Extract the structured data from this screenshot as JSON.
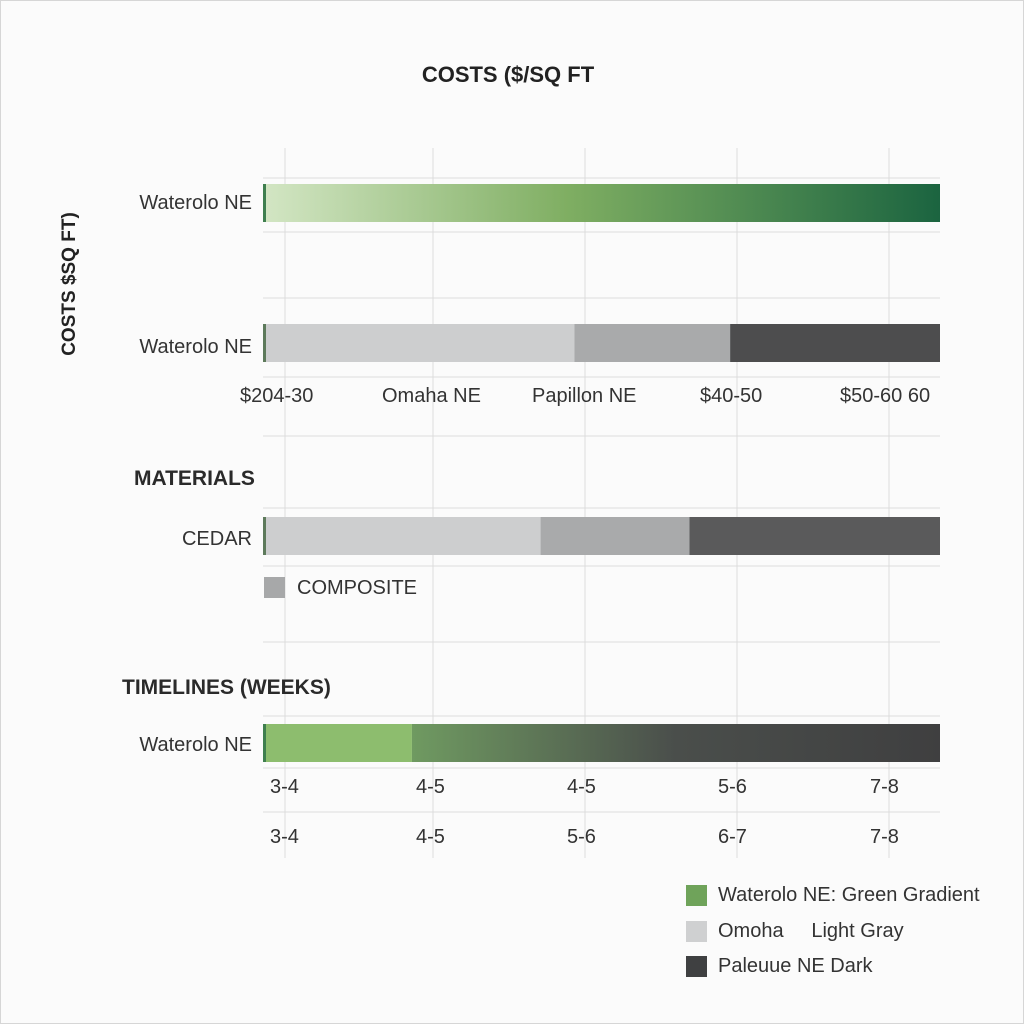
{
  "chart_data": {
    "type": "bar",
    "title": "COSTS ($/SQ FT",
    "ylabel": "COSTS $SQ FT)",
    "colors": {
      "green_start": "#d3e6c4",
      "green_mid": "#7fae62",
      "green_end": "#1b6440",
      "light_gray": "#cdcecf",
      "mid_gray": "#a9aaab",
      "dark_gray": "#4d4d4e",
      "grid": "#dcdcdc"
    },
    "costs": {
      "rows": [
        {
          "label": "Waterolo NE",
          "fill": "green-gradient",
          "segments": [
            1.0
          ]
        },
        {
          "label": "Waterolo NE",
          "fill": "gray-stack",
          "segments": [
            0.46,
            0.23,
            0.31
          ]
        }
      ],
      "ticks": [
        "$204-30",
        "Omaha NE",
        "Papillon NE",
        "$40-50",
        "$50-60 60"
      ]
    },
    "materials": {
      "heading": "MATERIALS",
      "rows": [
        {
          "label": "CEDAR",
          "segments": [
            0.41,
            0.22,
            0.37
          ]
        }
      ],
      "swatch_label": "COMPOSITE"
    },
    "timelines": {
      "heading": "TIMELINES (WEEKS)",
      "rows": [
        {
          "label": "Waterolo NE",
          "segments": [
            0.22,
            0.78
          ]
        }
      ],
      "ticks_row1": [
        "3-4",
        "4-5",
        "4-5",
        "5-6",
        "7-8"
      ],
      "ticks_row2": [
        "3-4",
        "4-5",
        "5-6",
        "6-7",
        "7-8"
      ]
    },
    "legend": [
      {
        "label": "Waterolo NE: Green Gradient",
        "color": "#6fa35a"
      },
      {
        "label": "Omoha     Light Gray",
        "color": "#cfd0d1"
      },
      {
        "label": "Paleuue NE Dark",
        "color": "#3f4041"
      }
    ]
  }
}
